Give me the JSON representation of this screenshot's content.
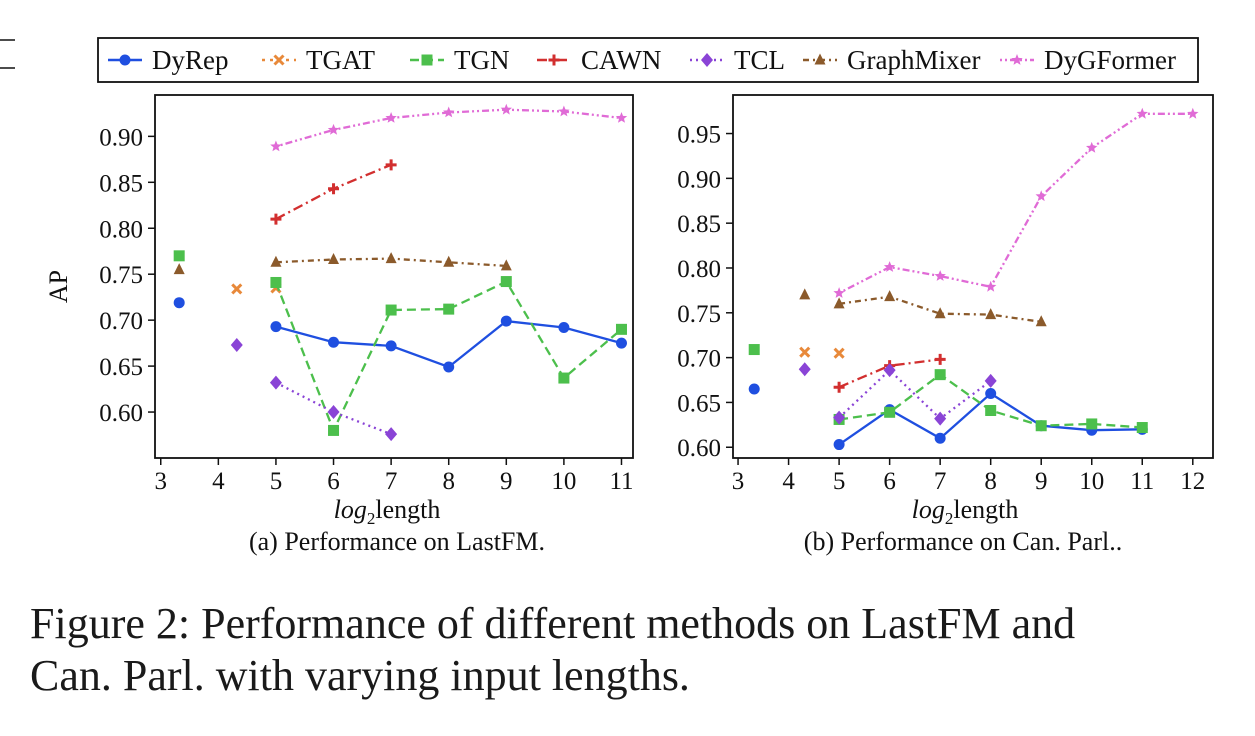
{
  "legend": [
    "DyRep",
    "TGAT",
    "TGN",
    "CAWN",
    "TCL",
    "GraphMixer",
    "DyGFormer"
  ],
  "colors": {
    "DyRep": "#1f4fe0",
    "TGAT": "#e8893a",
    "TGN": "#4cbf4c",
    "CAWN": "#d22f2f",
    "TCL": "#8a44d6",
    "GraphMixer": "#8b5a2b",
    "DyGFormer": "#e06bd6"
  },
  "caption": {
    "line1": "Figure 2: Performance of different methods on LastFM and",
    "line2": "Can. Parl. with varying input lengths."
  },
  "chart_data": [
    {
      "type": "line",
      "subtitle": "(a) Performance on LastFM.",
      "xlabel_prefix": "log",
      "xlabel_sub": "2",
      "xlabel_suffix": "length",
      "ylabel": "AP",
      "xlim": [
        2.9,
        11.2
      ],
      "ylim": [
        0.55,
        0.945
      ],
      "xticks": [
        3,
        4,
        5,
        6,
        7,
        8,
        9,
        10,
        11
      ],
      "yticks": [
        0.6,
        0.65,
        0.7,
        0.75,
        0.8,
        0.85,
        0.9
      ],
      "ytick_labels": [
        "0.60",
        "0.65",
        "0.70",
        "0.75",
        "0.80",
        "0.85",
        "0.90"
      ],
      "series": [
        {
          "name": "DyRep",
          "singles": [
            [
              3.32,
              0.719
            ]
          ],
          "x": [
            5,
            6,
            7,
            8,
            9,
            10,
            11
          ],
          "y": [
            0.693,
            0.676,
            0.672,
            0.649,
            0.699,
            0.692,
            0.675
          ]
        },
        {
          "name": "TGAT",
          "singles": [
            [
              4.32,
              0.734
            ],
            [
              5,
              0.735
            ]
          ],
          "x": [],
          "y": []
        },
        {
          "name": "TGN",
          "singles": [
            [
              3.32,
              0.77
            ]
          ],
          "x": [
            5,
            6,
            7,
            8,
            9,
            10,
            11
          ],
          "y": [
            0.741,
            0.58,
            0.711,
            0.712,
            0.742,
            0.637,
            0.69
          ]
        },
        {
          "name": "CAWN",
          "singles": [],
          "x": [
            5,
            6,
            7
          ],
          "y": [
            0.81,
            0.843,
            0.869
          ]
        },
        {
          "name": "TCL",
          "singles": [
            [
              4.32,
              0.673
            ]
          ],
          "x": [
            5,
            6,
            7
          ],
          "y": [
            0.632,
            0.6,
            0.576
          ]
        },
        {
          "name": "GraphMixer",
          "singles": [
            [
              3.32,
              0.755
            ]
          ],
          "x": [
            5,
            6,
            7,
            8,
            9
          ],
          "y": [
            0.763,
            0.766,
            0.767,
            0.763,
            0.759
          ]
        },
        {
          "name": "DyGFormer",
          "singles": [],
          "x": [
            5,
            6,
            7,
            8,
            9,
            10,
            11
          ],
          "y": [
            0.889,
            0.907,
            0.92,
            0.926,
            0.929,
            0.927,
            0.92
          ]
        }
      ]
    },
    {
      "type": "line",
      "subtitle": "(b) Performance on Can. Parl..",
      "xlabel_prefix": "log",
      "xlabel_sub": "2",
      "xlabel_suffix": "length",
      "ylabel": "",
      "xlim": [
        2.9,
        12.4
      ],
      "ylim": [
        0.588,
        0.993
      ],
      "xticks": [
        3,
        4,
        5,
        6,
        7,
        8,
        9,
        10,
        11,
        12
      ],
      "yticks": [
        0.6,
        0.65,
        0.7,
        0.75,
        0.8,
        0.85,
        0.9,
        0.95
      ],
      "ytick_labels": [
        "0.60",
        "0.65",
        "0.70",
        "0.75",
        "0.80",
        "0.85",
        "0.90",
        "0.95"
      ],
      "series": [
        {
          "name": "DyRep",
          "singles": [
            [
              3.32,
              0.665
            ]
          ],
          "x": [
            5,
            6,
            7,
            8,
            9,
            10,
            11
          ],
          "y": [
            0.603,
            0.642,
            0.61,
            0.66,
            0.624,
            0.619,
            0.62
          ]
        },
        {
          "name": "TGAT",
          "singles": [
            [
              4.32,
              0.706
            ],
            [
              5,
              0.705
            ]
          ],
          "x": [],
          "y": []
        },
        {
          "name": "TGN",
          "singles": [
            [
              3.32,
              0.709
            ]
          ],
          "x": [
            5,
            6,
            7,
            8,
            9,
            10,
            11
          ],
          "y": [
            0.631,
            0.639,
            0.681,
            0.641,
            0.624,
            0.626,
            0.622
          ]
        },
        {
          "name": "CAWN",
          "singles": [],
          "x": [
            5,
            6,
            7
          ],
          "y": [
            0.667,
            0.691,
            0.698
          ]
        },
        {
          "name": "TCL",
          "singles": [
            [
              4.32,
              0.687
            ]
          ],
          "x": [
            5,
            6,
            7,
            8
          ],
          "y": [
            0.633,
            0.686,
            0.632,
            0.674
          ]
        },
        {
          "name": "GraphMixer",
          "singles": [
            [
              4.32,
              0.77
            ]
          ],
          "x": [
            5,
            6,
            7,
            8,
            9
          ],
          "y": [
            0.76,
            0.768,
            0.749,
            0.748,
            0.74
          ]
        },
        {
          "name": "DyGFormer",
          "singles": [],
          "x": [
            5,
            6,
            7,
            8,
            9,
            10,
            11,
            12
          ],
          "y": [
            0.772,
            0.801,
            0.791,
            0.779,
            0.88,
            0.934,
            0.972,
            0.972
          ]
        }
      ]
    }
  ]
}
